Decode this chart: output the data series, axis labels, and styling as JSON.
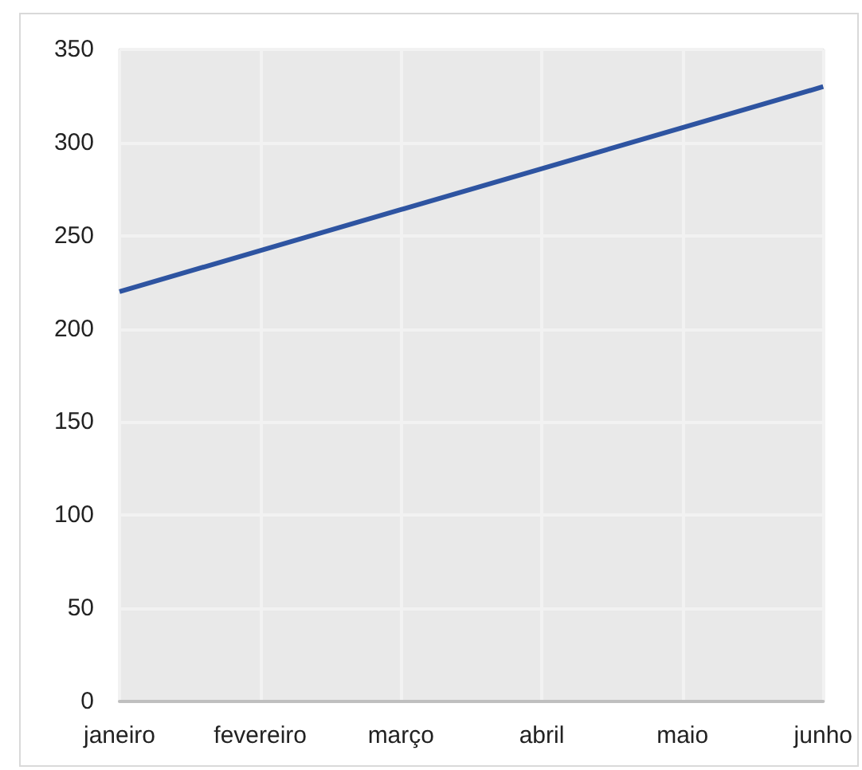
{
  "chart_data": {
    "type": "line",
    "categories": [
      "janeiro",
      "fevereiro",
      "março",
      "abril",
      "maio",
      "junho"
    ],
    "series": [
      {
        "color": "#2e54a1",
        "values": [
          220,
          242,
          264,
          286,
          308,
          330
        ]
      }
    ],
    "ylim": [
      0,
      350
    ],
    "yticks": [
      0,
      50,
      100,
      150,
      200,
      250,
      300,
      350
    ],
    "grid": true,
    "marker": "none",
    "line_style": "solid"
  }
}
